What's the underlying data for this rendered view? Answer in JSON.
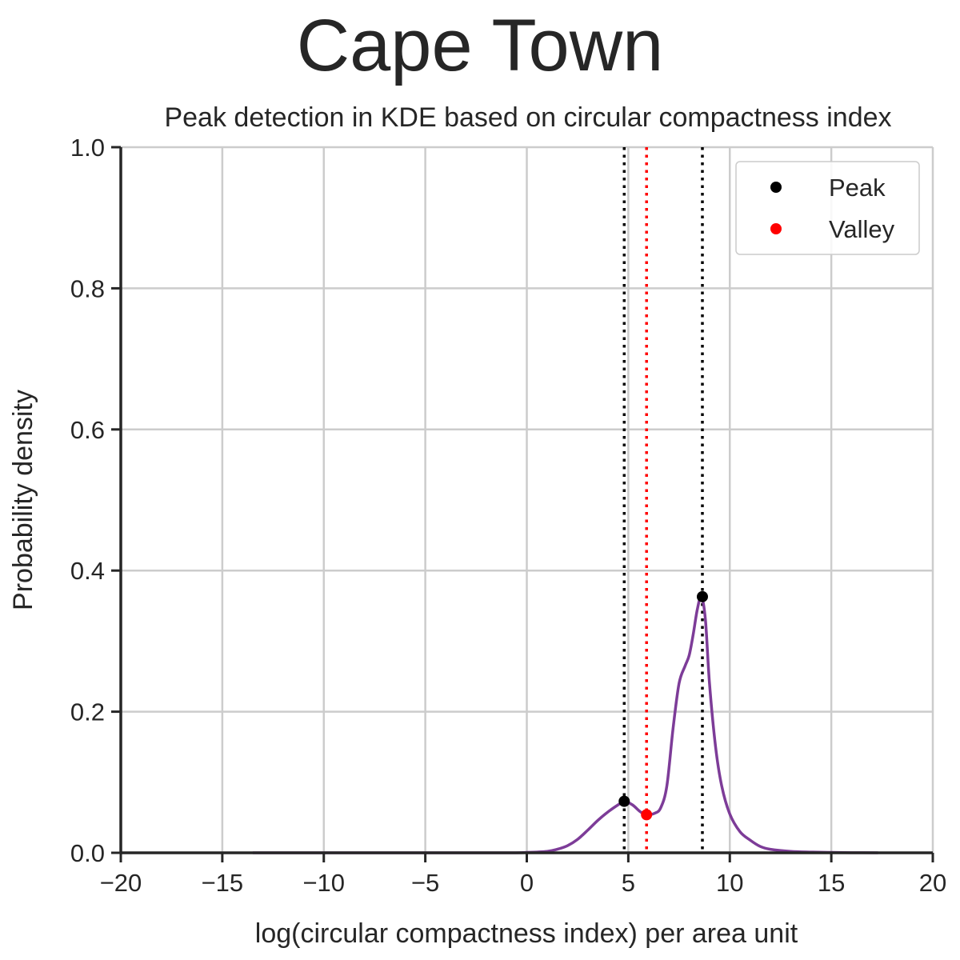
{
  "chart_data": {
    "type": "line",
    "title": "Cape Town",
    "subtitle": "Peak detection in KDE based on circular compactness index",
    "xlabel": "log(circular compactness index) per area unit",
    "ylabel": "Probability density",
    "xlim": [
      -20,
      20
    ],
    "ylim": [
      0,
      1.0
    ],
    "xticks": [
      -20,
      -15,
      -10,
      -5,
      0,
      5,
      10,
      15,
      20
    ],
    "xtick_labels": [
      "−20",
      "−15",
      "−10",
      "−5",
      "0",
      "5",
      "10",
      "15",
      "20"
    ],
    "yticks": [
      0,
      0.2,
      0.4,
      0.6,
      0.8,
      1.0
    ],
    "ytick_labels": [
      "0.0",
      "0.2",
      "0.4",
      "0.6",
      "0.8",
      "1.0"
    ],
    "grid": true,
    "legend_position": "top-right",
    "series": [
      {
        "color": "#7d3c98",
        "x": [
          -13.5,
          -10,
          -5,
          -1,
          0,
          1,
          1.5,
          2,
          2.5,
          3,
          3.5,
          4,
          4.5,
          4.8,
          5.2,
          5.6,
          5.9,
          6.3,
          6.6,
          6.9,
          7.2,
          7.5,
          7.8,
          8.0,
          8.2,
          8.4,
          8.6,
          8.8,
          9.0,
          9.3,
          9.6,
          10.0,
          10.5,
          11,
          11.5,
          12,
          13,
          14,
          15,
          16,
          17.3
        ],
        "y": [
          0.0,
          0.0,
          0.0,
          0.0,
          0.0005,
          0.002,
          0.005,
          0.01,
          0.019,
          0.032,
          0.046,
          0.058,
          0.068,
          0.073,
          0.068,
          0.058,
          0.054,
          0.056,
          0.064,
          0.095,
          0.175,
          0.24,
          0.265,
          0.28,
          0.31,
          0.345,
          0.363,
          0.33,
          0.24,
          0.15,
          0.095,
          0.055,
          0.03,
          0.018,
          0.009,
          0.005,
          0.002,
          0.001,
          0.0005,
          0.0002,
          0.0
        ]
      }
    ],
    "peaks": [
      {
        "x": 4.8,
        "y": 0.073
      },
      {
        "x": 8.65,
        "y": 0.363
      }
    ],
    "valleys": [
      {
        "x": 5.9,
        "y": 0.054
      }
    ],
    "legend": [
      {
        "label": "Peak",
        "color": "#000000"
      },
      {
        "label": "Valley",
        "color": "#ff0000"
      }
    ]
  }
}
